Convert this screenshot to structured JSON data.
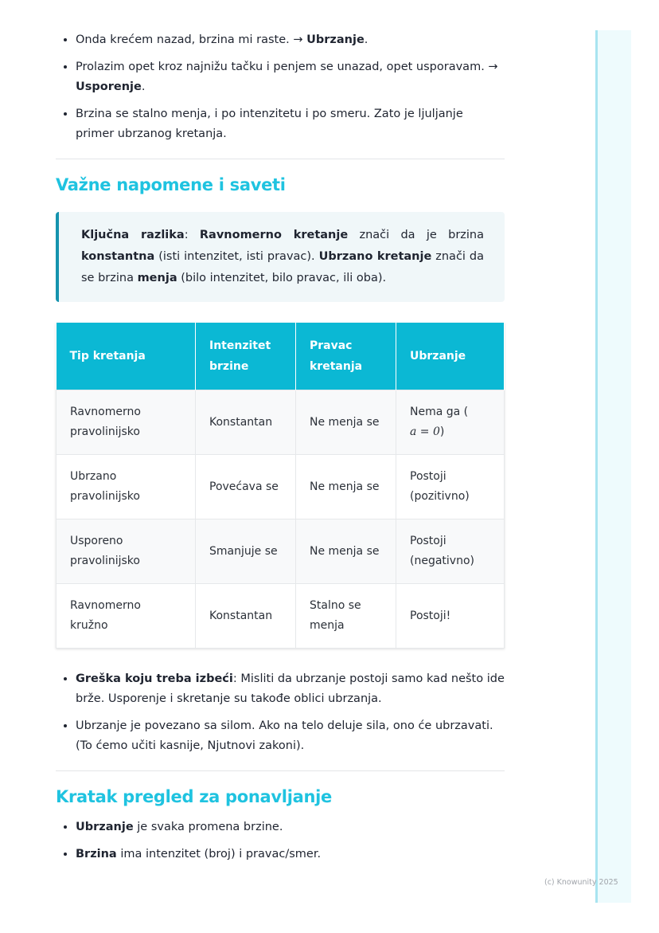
{
  "bullets_top": [
    {
      "text": "Onda krećem nazad, brzina mi raste. → ",
      "bold": "Ubrzanje",
      "end": "."
    },
    {
      "text": "Prolazim opet kroz najnižu tačku i penjem se unazad, opet usporavam. → ",
      "bold": "Usporenje",
      "end": "."
    },
    {
      "text": "Brzina se stalno menja, i po intenzitetu i po smeru. Zato je ljuljanje primer ubrzanog kretanja.",
      "bold": "",
      "end": ""
    }
  ],
  "section1": {
    "title": "Važne napomene i saveti",
    "callout": {
      "b1": "Ključna razlika",
      "t1": ": ",
      "b2": "Ravnomerno kretanje",
      "t2": " znači da je brzina ",
      "b3": "konstantna",
      "t3": " (isti intenzitet, isti pravac). ",
      "b4": "Ubrzano kretanje",
      "t4": " znači da se brzina ",
      "b5": "menja",
      "t5": " (bilo intenzitet, bilo pravac, ili oba)."
    }
  },
  "table": {
    "headers": [
      "Tip kretanja",
      "Intenzitet brzine",
      "Pravac kretanja",
      "Ubrzanje"
    ],
    "rows": [
      [
        "Ravnomerno pravolinijsko",
        "Konstantan",
        "Ne menja se",
        "Nema ga ("
      ],
      [
        "Ubrzano pravolinijsko",
        "Povećava se",
        "Ne menja se",
        "Postoji (pozitivno)"
      ],
      [
        "Usporeno pravolinijsko",
        "Smanjuje se",
        "Ne menja se",
        "Postoji (negativno)"
      ],
      [
        "Ravnomerno kružno",
        "Konstantan",
        "Stalno se menja",
        "Postoji!"
      ]
    ],
    "math": "a = 0",
    "math_close": ")"
  },
  "bullets_after": [
    {
      "bold": "Greška koju treba izbeći",
      "text": ": Misliti da ubrzanje postoji samo kad nešto ide brže. Usporenje i skretanje su takođe oblici ubrzanja."
    },
    {
      "bold": "",
      "text": "Ubrzanje je povezano sa silom. Ako na telo deluje sila, ono će ubrzavati. (To ćemo učiti kasnije, Njutnovi zakoni)."
    }
  ],
  "section2": {
    "title": "Kratak pregled za ponavljanje",
    "bullets": [
      {
        "bold": "Ubrzanje",
        "text": " je svaka promena brzine."
      },
      {
        "bold": "Brzina",
        "text": " ima intenzitet (broj) i pravac/smer."
      }
    ]
  },
  "footer": "(c) Knowunity 2025"
}
